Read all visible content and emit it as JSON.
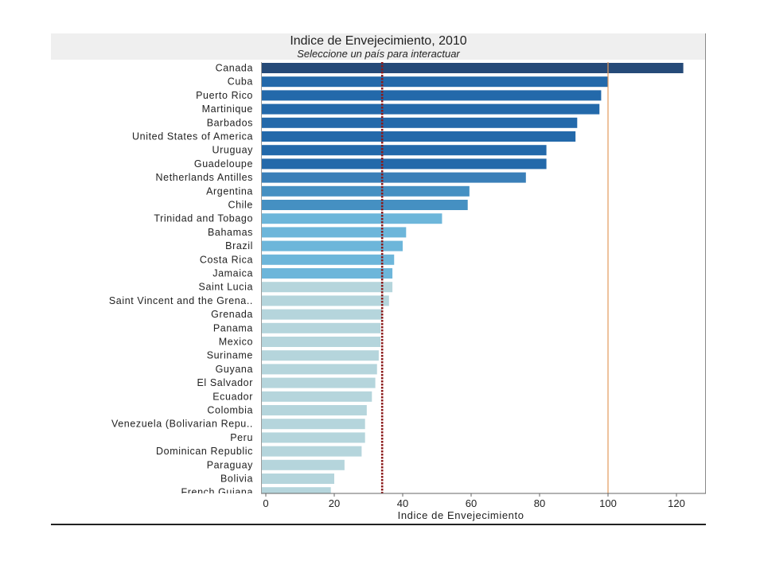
{
  "chart_data": {
    "type": "bar",
    "orientation": "horizontal",
    "title": "Indice de Envejecimiento, 2010",
    "subtitle": "Seleccione un país para interactuar",
    "xlabel": "Indice de Envejecimiento",
    "ylabel": "",
    "xlim": [
      0,
      125
    ],
    "xticks": [
      0,
      20,
      40,
      60,
      80,
      100,
      120
    ],
    "grid": false,
    "legend": "none",
    "reference_lines": [
      {
        "value": 34,
        "style": "dotted",
        "color": "#8b1a1a"
      },
      {
        "value": 100,
        "style": "solid",
        "color": "#e39a5c"
      }
    ],
    "categories": [
      "Canada",
      "Cuba",
      "Puerto Rico",
      "Martinique",
      "Barbados",
      "United States of America",
      "Uruguay",
      "Guadeloupe",
      "Netherlands Antilles",
      "Argentina",
      "Chile",
      "Trinidad and Tobago",
      "Bahamas",
      "Brazil",
      "Costa Rica",
      "Jamaica",
      "Saint Lucia",
      "Saint Vincent and the Grena..",
      "Grenada",
      "Panama",
      "Mexico",
      "Suriname",
      "Guyana",
      "El Salvador",
      "Ecuador",
      "Colombia",
      "Venezuela (Bolivarian Repu..",
      "Peru",
      "Dominican Republic",
      "Paraguay",
      "Bolivia",
      "French Guiana"
    ],
    "values": [
      122,
      100,
      98,
      97.5,
      91,
      90.5,
      82,
      82,
      76,
      59.5,
      59,
      51.5,
      41,
      40,
      37.5,
      37,
      37,
      36,
      34,
      33.5,
      33.5,
      33,
      32.5,
      32,
      31,
      29.5,
      29,
      29,
      28,
      23,
      20,
      19
    ],
    "colors": [
      "#254a78",
      "#2369aa",
      "#2369aa",
      "#2369aa",
      "#2369aa",
      "#2369aa",
      "#2369aa",
      "#2369aa",
      "#3a7fb8",
      "#4590c2",
      "#4590c2",
      "#6db6da",
      "#6db6da",
      "#6db6da",
      "#6db6da",
      "#6db6da",
      "#b5d5dc",
      "#b5d5dc",
      "#b5d5dc",
      "#b5d5dc",
      "#b5d5dc",
      "#b5d5dc",
      "#b5d5dc",
      "#b5d5dc",
      "#b5d5dc",
      "#b5d5dc",
      "#b5d5dc",
      "#b5d5dc",
      "#b5d5dc",
      "#b5d5dc",
      "#b5d5dc",
      "#b5d5dc"
    ]
  }
}
